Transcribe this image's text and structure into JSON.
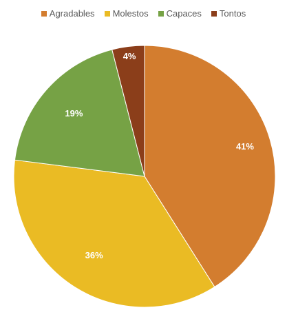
{
  "chart_data": {
    "type": "pie",
    "categories": [
      "Agradables",
      "Molestos",
      "Capaces",
      "Tontos"
    ],
    "values": [
      41,
      36,
      19,
      4
    ],
    "labels": [
      "41%",
      "36%",
      "19%",
      "4%"
    ],
    "colors": [
      "#d37d2f",
      "#eabb24",
      "#76a245",
      "#8b3e1a"
    ],
    "legend_position": "top",
    "start_angle_deg": 0,
    "direction": "clockwise"
  }
}
